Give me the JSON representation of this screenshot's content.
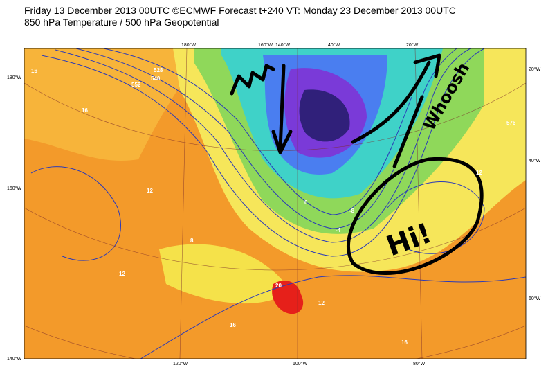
{
  "header": {
    "title": "Friday 13 December 2013 00UTC ©ECMWF Forecast t+240 VT: Monday 23 December 2013 00UTC",
    "subtitle": "850 hPa Temperature / 500 hPa Geopotential"
  },
  "map": {
    "top_labels": [
      "180°W",
      "160°W",
      "140°W",
      "40°W",
      "20°W"
    ],
    "bottom_labels": [
      "120°W",
      "100°W",
      "80°W"
    ],
    "left_labels": [
      "180°W",
      "160°W",
      "140°W"
    ],
    "right_labels": [
      "20°W",
      "40°W",
      "60°W"
    ],
    "contour_labels": [
      "16",
      "16",
      "12",
      "8",
      "12",
      "16",
      "20",
      "12",
      "16",
      "-4",
      "0",
      "-8",
      "12",
      "552",
      "528",
      "540",
      "576"
    ],
    "annotations": [
      "Whoosh",
      "Hi!"
    ]
  }
}
